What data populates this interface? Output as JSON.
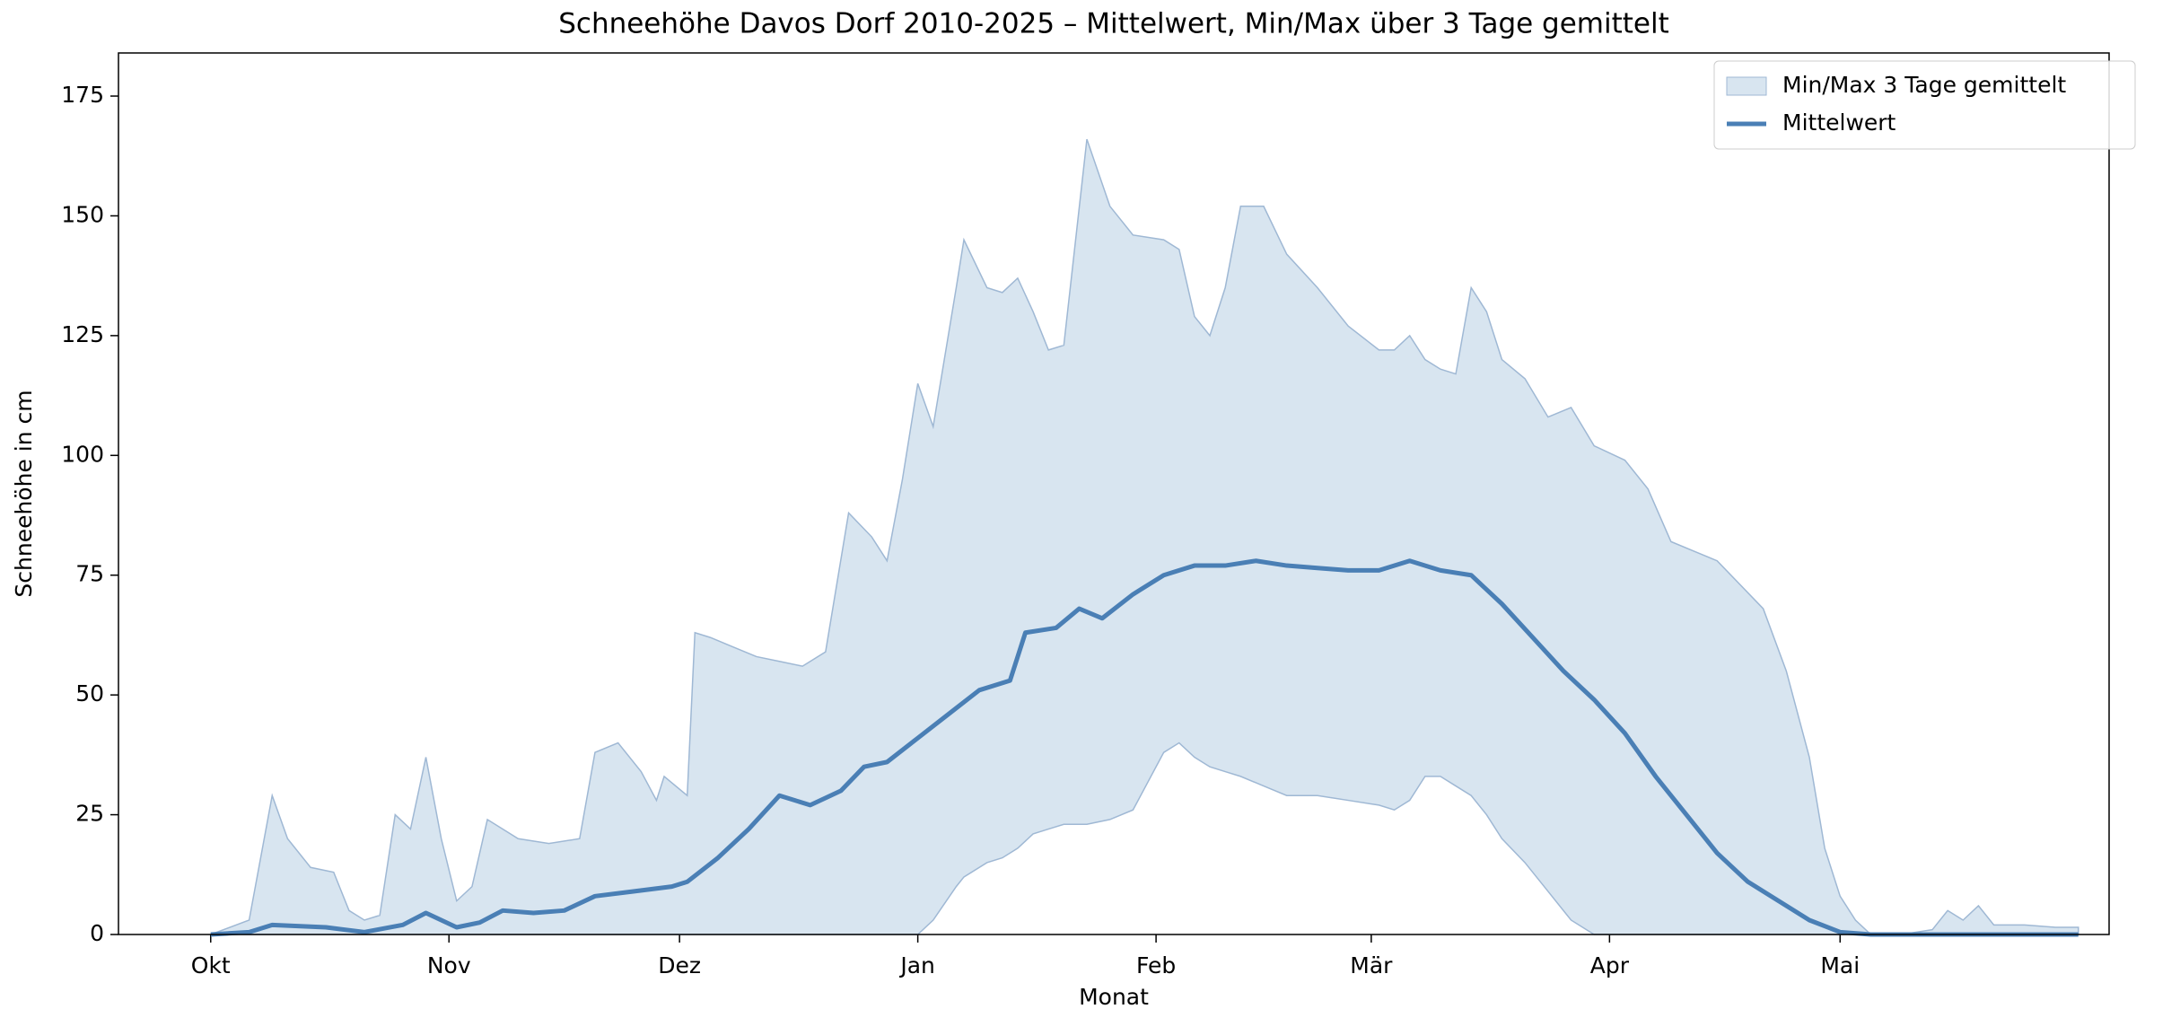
{
  "chart_data": {
    "type": "line",
    "title": "Schneehöhe Davos Dorf 2010-2025 – Mittelwert, Min/Max über 3 Tage gemittelt",
    "xlabel": "Monat",
    "ylabel": "Schneehöhe in cm",
    "xlim": [
      -12,
      247
    ],
    "ylim": [
      0,
      184
    ],
    "xticks": [
      {
        "value": 0,
        "label": "Okt"
      },
      {
        "value": 31,
        "label": "Nov"
      },
      {
        "value": 61,
        "label": "Dez"
      },
      {
        "value": 92,
        "label": "Jan"
      },
      {
        "value": 123,
        "label": "Feb"
      },
      {
        "value": 151,
        "label": "Mär"
      },
      {
        "value": 182,
        "label": "Apr"
      },
      {
        "value": 212,
        "label": "Mai"
      }
    ],
    "yticks": [
      0,
      25,
      50,
      75,
      100,
      125,
      150,
      175
    ],
    "legend": "upper right",
    "series": [
      {
        "name": "Min/Max 3 Tage gemittelt",
        "type": "band",
        "color": "#b8cfe4",
        "x": [
          0,
          5,
          8,
          10,
          13,
          16,
          18,
          20,
          22,
          24,
          26,
          28,
          30,
          32,
          34,
          36,
          40,
          44,
          48,
          50,
          53,
          56,
          58,
          59,
          62,
          63,
          65,
          68,
          71,
          74,
          77,
          80,
          83,
          86,
          88,
          90,
          92,
          94,
          97,
          98,
          101,
          103,
          105,
          107,
          109,
          111,
          114,
          117,
          120,
          124,
          126,
          128,
          130,
          132,
          134,
          137,
          140,
          144,
          148,
          152,
          154,
          156,
          158,
          160,
          162,
          164,
          166,
          168,
          171,
          174,
          177,
          180,
          184,
          187,
          190,
          193,
          196,
          199,
          202,
          205,
          208,
          210,
          212,
          214,
          216,
          220,
          224,
          226,
          228,
          230,
          232,
          236,
          240,
          243
        ],
        "high": [
          0,
          3,
          29,
          20,
          14,
          13,
          5,
          3,
          4,
          25,
          22,
          37,
          20,
          7,
          10,
          24,
          20,
          19,
          20,
          38,
          40,
          34,
          28,
          33,
          29,
          63,
          62,
          60,
          58,
          57,
          56,
          59,
          88,
          83,
          78,
          95,
          115,
          106,
          135,
          145,
          135,
          134,
          137,
          130,
          122,
          123,
          166,
          152,
          146,
          145,
          143,
          129,
          125,
          135,
          152,
          152,
          142,
          135,
          127,
          122,
          122,
          125,
          120,
          118,
          117,
          135,
          130,
          120,
          116,
          108,
          110,
          102,
          99,
          93,
          82,
          80,
          78,
          73,
          68,
          55,
          37,
          18,
          8,
          3,
          0,
          0,
          1,
          5,
          3,
          6,
          2,
          2,
          1.5,
          1.5
        ],
        "low": [
          0,
          0,
          0,
          0,
          0,
          0,
          0,
          0,
          0,
          0,
          0,
          0,
          0,
          0,
          0,
          0,
          0,
          0,
          0,
          0,
          0,
          0,
          0,
          0,
          0,
          0,
          0,
          0,
          0,
          0,
          0,
          0,
          0,
          0,
          0,
          0,
          0,
          3,
          10,
          12,
          15,
          16,
          18,
          21,
          22,
          23,
          23,
          24,
          26,
          38,
          40,
          37,
          35,
          34,
          33,
          31,
          29,
          29,
          28,
          27,
          26,
          28,
          33,
          33,
          31,
          29,
          25,
          20,
          15,
          9,
          3,
          0,
          0,
          0,
          0,
          0,
          0,
          0,
          0,
          0,
          0,
          0,
          0,
          0,
          0,
          0,
          0,
          0,
          0,
          0,
          0,
          0,
          0,
          0
        ]
      },
      {
        "name": "Mittelwert",
        "type": "line",
        "color": "#4a7fb5",
        "x": [
          0,
          5,
          8,
          15,
          20,
          25,
          28,
          32,
          35,
          38,
          42,
          46,
          50,
          55,
          60,
          62,
          66,
          70,
          74,
          78,
          82,
          85,
          88,
          92,
          96,
          100,
          104,
          106,
          110,
          113,
          116,
          120,
          124,
          128,
          132,
          136,
          140,
          144,
          148,
          152,
          156,
          160,
          164,
          168,
          172,
          176,
          180,
          184,
          188,
          192,
          196,
          200,
          204,
          208,
          212,
          216,
          243
        ],
        "values": [
          0,
          0.5,
          2,
          1.5,
          0.5,
          2,
          4.5,
          1.5,
          2.5,
          5,
          4.5,
          5,
          8,
          9,
          10,
          11,
          16,
          22,
          29,
          27,
          30,
          35,
          36,
          41,
          46,
          51,
          53,
          63,
          64,
          68,
          66,
          71,
          75,
          77,
          77,
          78,
          77,
          76.5,
          76,
          76,
          78,
          76,
          75,
          69,
          62,
          55,
          49,
          42,
          33,
          25,
          17,
          11,
          7,
          3,
          0.5,
          0,
          0
        ]
      }
    ]
  }
}
